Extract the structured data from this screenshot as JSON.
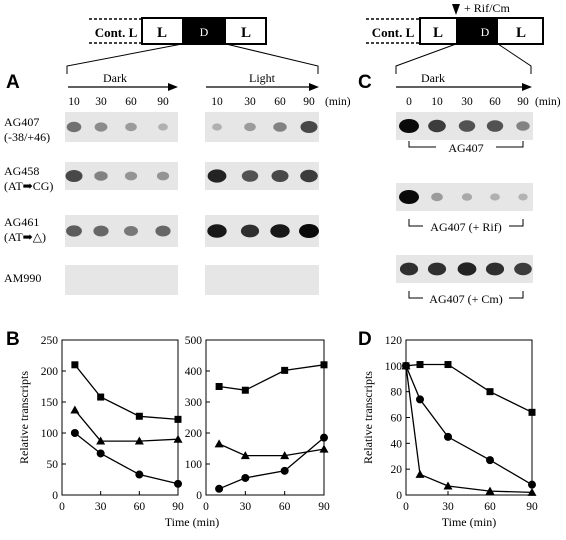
{
  "panels": {
    "A": "A",
    "B": "B",
    "C": "C",
    "D": "D"
  },
  "schemes": {
    "left": {
      "cont": "Cont. L",
      "l1": "L",
      "d": "D",
      "l2": "L"
    },
    "right": {
      "cont": "Cont. L",
      "l1": "L",
      "d": "D",
      "l2": "L",
      "treatment": "+ Rif/Cm"
    }
  },
  "blots_A": {
    "dark_label": "Dark",
    "light_label": "Light",
    "dark_times": [
      "10",
      "30",
      "60",
      "90"
    ],
    "light_times": [
      "10",
      "30",
      "60",
      "90"
    ],
    "unit": "(min)",
    "rows": [
      {
        "name": "AG407",
        "sub": "(-38/+46)",
        "dark": [
          0.55,
          0.4,
          0.3,
          0.15
        ],
        "light": [
          0.15,
          0.3,
          0.45,
          0.75
        ]
      },
      {
        "name": "AG458",
        "sub": "(AT➡CG)",
        "dark": [
          0.75,
          0.45,
          0.35,
          0.35
        ],
        "light": [
          0.9,
          0.7,
          0.75,
          0.8
        ]
      },
      {
        "name": "AG461",
        "sub": "(AT➡△)",
        "dark": [
          0.65,
          0.6,
          0.5,
          0.6
        ],
        "light": [
          0.95,
          0.85,
          0.95,
          1.0
        ]
      },
      {
        "name": "AM990",
        "sub": "",
        "dark": [
          0,
          0,
          0,
          0
        ],
        "light": [
          0,
          0,
          0,
          0
        ]
      }
    ]
  },
  "blots_C": {
    "dark_label": "Dark",
    "times": [
      "0",
      "10",
      "30",
      "60",
      "90"
    ],
    "unit": "(min)",
    "rows": [
      {
        "label": "AG407",
        "spots": [
          1.0,
          0.8,
          0.7,
          0.7,
          0.45
        ]
      },
      {
        "label": "AG407 (+ Rif)",
        "spots": [
          1.0,
          0.3,
          0.2,
          0.15,
          0.12
        ]
      },
      {
        "label": "AG407 (+ Cm)",
        "spots": [
          0.85,
          0.85,
          0.9,
          0.85,
          0.8
        ]
      }
    ]
  },
  "chart_data": [
    {
      "type": "line",
      "panel": "B",
      "condition": "Dark",
      "xlabel": "",
      "ylabel": "Relative transcripts",
      "xlim": [
        0,
        90
      ],
      "ylim": [
        0,
        250
      ],
      "xticks": [
        0,
        30,
        60,
        90
      ],
      "yticks": [
        0,
        50,
        100,
        150,
        200,
        250
      ],
      "series": [
        {
          "marker": "square",
          "x": [
            10,
            30,
            60,
            90
          ],
          "y": [
            210,
            158,
            127,
            122
          ]
        },
        {
          "marker": "triangle",
          "x": [
            10,
            30,
            60,
            90
          ],
          "y": [
            137,
            87,
            87,
            90
          ]
        },
        {
          "marker": "circle",
          "x": [
            10,
            30,
            60,
            90
          ],
          "y": [
            100,
            67,
            33,
            18
          ]
        }
      ]
    },
    {
      "type": "line",
      "panel": "B",
      "condition": "Light",
      "xlabel": "Time (min)",
      "ylabel": "",
      "xlim": [
        0,
        90
      ],
      "ylim": [
        0,
        500
      ],
      "xticks": [
        0,
        30,
        60,
        90
      ],
      "yticks": [
        0,
        100,
        200,
        300,
        400,
        500
      ],
      "series": [
        {
          "marker": "square",
          "x": [
            10,
            30,
            60,
            90
          ],
          "y": [
            350,
            338,
            402,
            420
          ]
        },
        {
          "marker": "triangle",
          "x": [
            10,
            30,
            60,
            90
          ],
          "y": [
            165,
            127,
            127,
            148
          ]
        },
        {
          "marker": "circle",
          "x": [
            10,
            30,
            60,
            90
          ],
          "y": [
            20,
            55,
            78,
            185
          ]
        }
      ]
    },
    {
      "type": "line",
      "panel": "D",
      "condition": "Dark",
      "xlabel": "Time (min)",
      "ylabel": "Relative transcripts",
      "xlim": [
        0,
        90
      ],
      "ylim": [
        0,
        120
      ],
      "xticks": [
        0,
        30,
        60,
        90
      ],
      "yticks": [
        0,
        20,
        40,
        60,
        80,
        100,
        120
      ],
      "series": [
        {
          "name": "AG407 (+ Cm)",
          "marker": "square",
          "x": [
            0,
            10,
            30,
            60,
            90
          ],
          "y": [
            100,
            101,
            101,
            80,
            64
          ]
        },
        {
          "name": "AG407",
          "marker": "circle",
          "x": [
            0,
            10,
            30,
            60,
            90
          ],
          "y": [
            100,
            74,
            45,
            27,
            8
          ]
        },
        {
          "name": "AG407 (+ Rif)",
          "marker": "triangle",
          "x": [
            0,
            10,
            30,
            60,
            90
          ],
          "y": [
            100,
            16,
            7,
            3,
            2
          ]
        }
      ]
    }
  ]
}
